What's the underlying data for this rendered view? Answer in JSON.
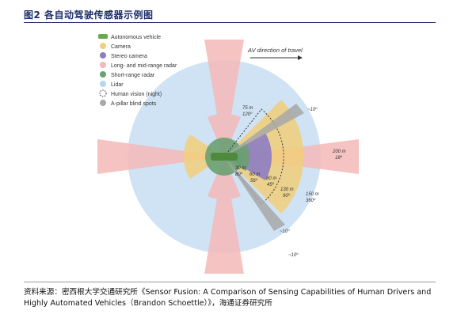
{
  "figure": {
    "title": "图2  各自动驾驶传感器示例图"
  },
  "legend": [
    {
      "label": "Autonomous vehicle",
      "color": "#6aa84f",
      "icon": "car-icon"
    },
    {
      "label": "Camera",
      "color": "#f2cf7a",
      "icon": "dot"
    },
    {
      "label": "Stereo camera",
      "color": "#8e7cc3",
      "icon": "dot"
    },
    {
      "label": "Long- and mid-range radar",
      "color": "#f4b8b8",
      "icon": "dot"
    },
    {
      "label": "Short-range radar",
      "color": "#6aa072",
      "icon": "dot"
    },
    {
      "label": "Lidar",
      "color": "#b7d7f0",
      "icon": "dot"
    },
    {
      "label": "Human vision (night)",
      "color": "#333333",
      "icon": "dashed-circle"
    },
    {
      "label": "A-pillar blind spots",
      "color": "#a8a8a8",
      "icon": "dot"
    }
  ],
  "direction_label": "AV direction of travel",
  "annotations": {
    "camera_range": "75 m",
    "camera_angle": "120º",
    "long_radar_range": "200 m",
    "long_radar_angle": "18º",
    "lidar_range": "150 m",
    "lidar_angle": "360º",
    "human_range": "130 m",
    "human_angle": "90º",
    "stereo_range": "80 m",
    "stereo_angle": "45º",
    "mid_radar_range": "60 m",
    "mid_radar_angle": "56º",
    "short_radar_range": "30 m",
    "short_radar_angle": "80º",
    "blind_top": "~10º",
    "blind_bottom_inner": "~10º",
    "blind_bottom_outer": "~10º"
  },
  "source": {
    "line1": "资料来源：密西根大学交通研究所《Sensor Fusion: A Comparison of Sensing Capabilities of Human Drivers and",
    "line2": "Highly Automated Vehicles（Brandon Schoettle）》，海通证券研究所"
  },
  "colors": {
    "title": "#1f2f6b",
    "lidar": "#cfe3f4",
    "radar": "#f4b8b8",
    "camera": "#f2cf7a",
    "stereo": "#8e7cc3",
    "short_radar": "#6aa072",
    "blind": "#a8a8a8"
  }
}
